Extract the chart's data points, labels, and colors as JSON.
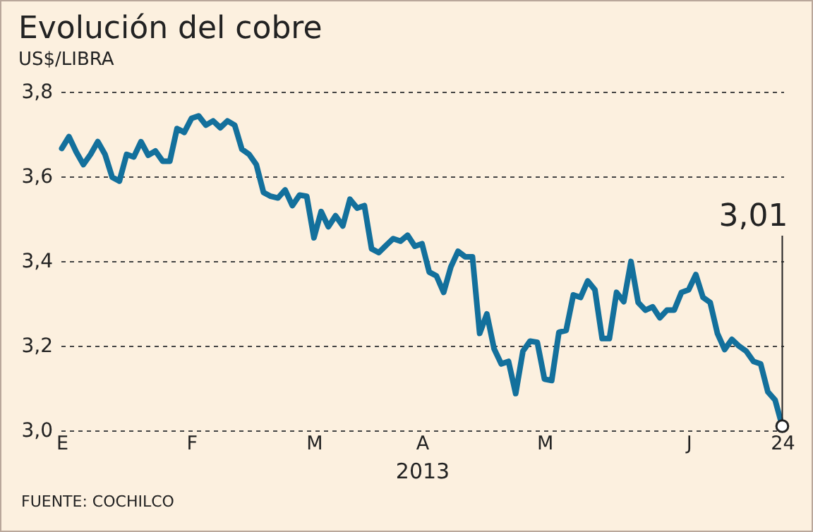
{
  "chart_data": {
    "type": "line",
    "title": "Evolución del cobre",
    "subtitle": "US$/LIBRA",
    "xlabel": "2013",
    "annotations": [
      {
        "text": "3,01",
        "x": "24",
        "y": 3.01
      },
      "FUENTE: COCHILCO"
    ],
    "categories": [
      "E",
      null,
      null,
      null,
      null,
      null,
      null,
      null,
      null,
      null,
      null,
      null,
      null,
      null,
      null,
      null,
      null,
      null,
      "F",
      null,
      null,
      null,
      null,
      null,
      null,
      null,
      null,
      null,
      null,
      null,
      null,
      null,
      null,
      null,
      null,
      "M",
      null,
      null,
      null,
      null,
      null,
      null,
      null,
      null,
      null,
      null,
      null,
      null,
      null,
      null,
      "A",
      null,
      null,
      null,
      null,
      null,
      null,
      null,
      null,
      null,
      null,
      null,
      null,
      null,
      null,
      null,
      null,
      "M",
      null,
      null,
      null,
      null,
      null,
      null,
      null,
      null,
      null,
      null,
      null,
      null,
      null,
      null,
      null,
      null,
      null,
      null,
      null,
      "J",
      null,
      null,
      null,
      null,
      null,
      null,
      null,
      null,
      null,
      null,
      null,
      null,
      "24"
    ],
    "series": [
      {
        "color": "#13709c",
        "values": [
          3.666,
          3.694,
          3.658,
          3.628,
          3.652,
          3.682,
          3.652,
          3.598,
          3.589,
          3.652,
          3.646,
          3.682,
          3.65,
          3.66,
          3.636,
          3.636,
          3.713,
          3.704,
          3.737,
          3.743,
          3.721,
          3.731,
          3.715,
          3.731,
          3.721,
          3.664,
          3.652,
          3.628,
          3.562,
          3.553,
          3.549,
          3.568,
          3.531,
          3.556,
          3.553,
          3.455,
          3.517,
          3.481,
          3.507,
          3.483,
          3.546,
          3.525,
          3.531,
          3.429,
          3.42,
          3.437,
          3.453,
          3.447,
          3.461,
          3.435,
          3.441,
          3.374,
          3.365,
          3.326,
          3.386,
          3.423,
          3.41,
          3.41,
          3.229,
          3.275,
          3.193,
          3.157,
          3.163,
          3.087,
          3.187,
          3.211,
          3.208,
          3.121,
          3.118,
          3.232,
          3.236,
          3.32,
          3.314,
          3.353,
          3.332,
          3.217,
          3.217,
          3.326,
          3.304,
          3.399,
          3.302,
          3.284,
          3.292,
          3.266,
          3.284,
          3.284,
          3.326,
          3.332,
          3.368,
          3.314,
          3.302,
          3.229,
          3.191,
          3.215,
          3.199,
          3.187,
          3.163,
          3.157,
          3.091,
          3.072,
          3.01
        ]
      }
    ],
    "ylim": [
      3.0,
      3.8
    ],
    "yticks": [
      {
        "value": 3.0,
        "label": "3,0"
      },
      {
        "value": 3.2,
        "label": "3,2"
      },
      {
        "value": 3.4,
        "label": "3,4"
      },
      {
        "value": 3.6,
        "label": "3,6"
      },
      {
        "value": 3.8,
        "label": "3,8"
      }
    ],
    "grid": "y",
    "marker": "none",
    "line_style": "solid"
  }
}
